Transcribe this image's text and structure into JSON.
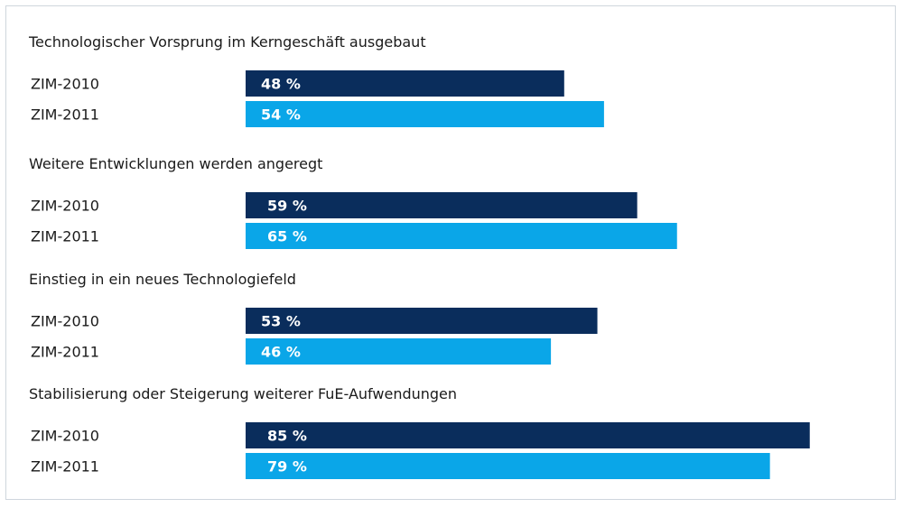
{
  "chart_data": {
    "type": "bar",
    "orientation": "horizontal",
    "value_suffix": " %",
    "xlim": [
      0,
      100
    ],
    "colors": {
      "ZIM-2010": "#0a2d5c",
      "ZIM-2011": "#0aa6e8"
    },
    "groups": [
      {
        "title": "Technologischer Vorsprung im Kerngeschäft ausgebaut",
        "rows": [
          {
            "label": "ZIM-2010",
            "value": 48
          },
          {
            "label": "ZIM-2011",
            "value": 54
          }
        ]
      },
      {
        "title": "Weitere Entwicklungen werden angeregt",
        "rows": [
          {
            "label": "ZIM-2010",
            "value": 59
          },
          {
            "label": "ZIM-2011",
            "value": 65
          }
        ]
      },
      {
        "title": "Einstieg in ein neues Technologiefeld",
        "rows": [
          {
            "label": "ZIM-2010",
            "value": 53
          },
          {
            "label": "ZIM-2011",
            "value": 46
          }
        ]
      },
      {
        "title": "Stabilisierung oder Steigerung weiterer FuE-Aufwendungen",
        "rows": [
          {
            "label": "ZIM-2010",
            "value": 85
          },
          {
            "label": "ZIM-2011",
            "value": 79
          }
        ]
      }
    ]
  }
}
